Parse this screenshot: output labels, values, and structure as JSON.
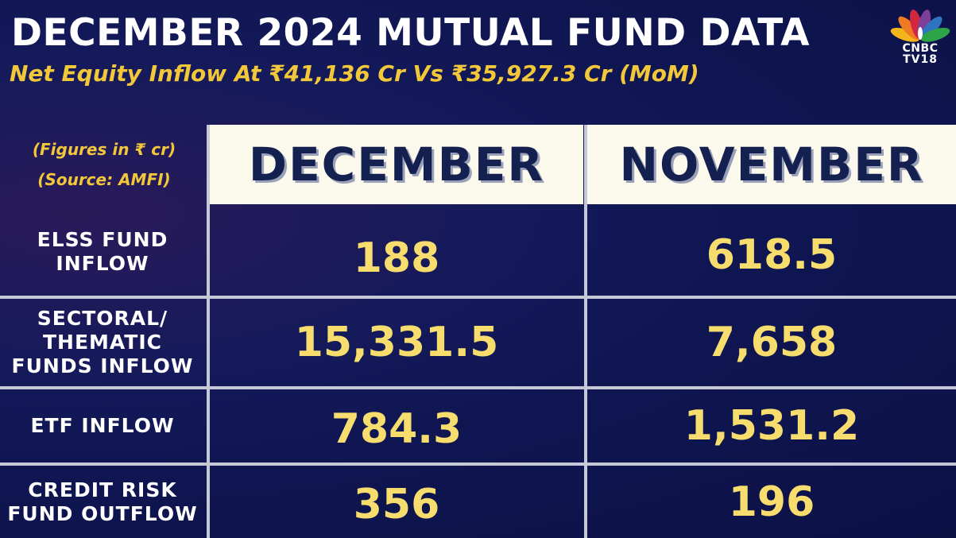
{
  "header": {
    "title": "DECEMBER 2024 MUTUAL FUND DATA",
    "subtitle": "Net Equity Inflow At ₹41,136 Cr Vs ₹35,927.3 Cr (MoM)"
  },
  "logo": {
    "icon": "peacock-icon",
    "line1": "CNBC",
    "line2": "TV18",
    "colors": [
      "#f2b51c",
      "#ee7a23",
      "#d2273f",
      "#7e3f98",
      "#2f74c0",
      "#2ea449"
    ]
  },
  "notes": {
    "figures": "(Figures in ₹ cr)",
    "source": "(Source: AMFI)"
  },
  "table": {
    "columns": [
      "DECEMBER",
      "NOVEMBER"
    ],
    "rows": [
      {
        "label_lines": [
          "ELSS FUND",
          "INFLOW"
        ],
        "december": "188",
        "november": "618.5"
      },
      {
        "label_lines": [
          "SECTORAL/",
          "THEMATIC",
          "FUNDS INFLOW"
        ],
        "december": "15,331.5",
        "november": "7,658"
      },
      {
        "label_lines": [
          "ETF INFLOW"
        ],
        "december": "784.3",
        "november": "1,531.2"
      },
      {
        "label_lines": [
          "CREDIT RISK",
          "FUND OUTFLOW"
        ],
        "december": "356",
        "november": "196"
      }
    ]
  },
  "colors": {
    "background": "#0f1550",
    "title": "#ffffff",
    "accent_yellow": "#f2c83a",
    "value_yellow": "#f6dd6e",
    "header_bg": "#fbf8ec",
    "header_text": "#132050",
    "grid_lines": "#c5c8d6"
  }
}
